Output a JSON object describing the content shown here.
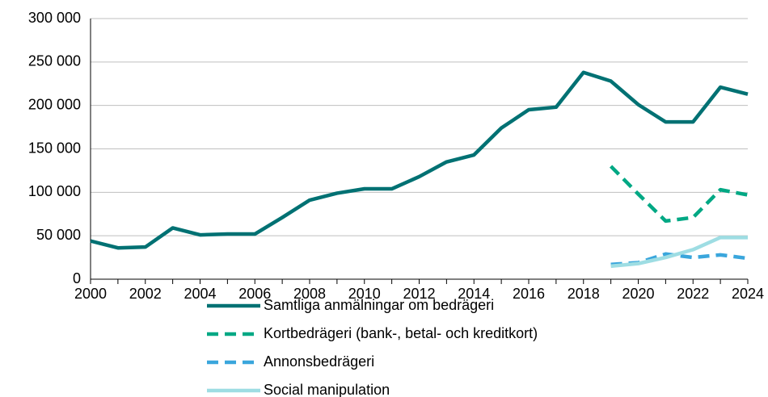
{
  "chart_data": {
    "type": "line",
    "x": [
      2000,
      2001,
      2002,
      2003,
      2004,
      2005,
      2006,
      2007,
      2008,
      2009,
      2010,
      2011,
      2012,
      2013,
      2014,
      2015,
      2016,
      2017,
      2018,
      2019,
      2020,
      2021,
      2022,
      2023,
      2024
    ],
    "series": [
      {
        "name": "Samtliga anmälningar om bedrägeri",
        "color": "#007173",
        "dash": false,
        "values": [
          44000,
          36000,
          37000,
          59000,
          51000,
          52000,
          52000,
          71000,
          91000,
          99000,
          104000,
          104000,
          118000,
          135000,
          143000,
          174000,
          195000,
          198000,
          238000,
          228000,
          201000,
          181000,
          181000,
          221000,
          213000
        ]
      },
      {
        "name": "Kortbedrägeri (bank-, betal- och kreditkort)",
        "color": "#00a884",
        "dash": true,
        "values": [
          null,
          null,
          null,
          null,
          null,
          null,
          null,
          null,
          null,
          null,
          null,
          null,
          null,
          null,
          null,
          null,
          null,
          null,
          null,
          130000,
          98000,
          67000,
          71000,
          103000,
          97000
        ]
      },
      {
        "name": "Annonsbedrägeri",
        "color": "#3aa6dc",
        "dash": true,
        "values": [
          null,
          null,
          null,
          null,
          null,
          null,
          null,
          null,
          null,
          null,
          null,
          null,
          null,
          null,
          null,
          null,
          null,
          null,
          null,
          17000,
          19000,
          29000,
          25000,
          28000,
          24000
        ]
      },
      {
        "name": "Social manipulation",
        "color": "#9edde3",
        "dash": false,
        "values": [
          null,
          null,
          null,
          null,
          null,
          null,
          null,
          null,
          null,
          null,
          null,
          null,
          null,
          null,
          null,
          null,
          null,
          null,
          null,
          15000,
          18000,
          25000,
          34000,
          48000,
          48000
        ]
      }
    ],
    "xlim": [
      2000,
      2024
    ],
    "xticks": [
      2000,
      2002,
      2004,
      2006,
      2008,
      2010,
      2012,
      2014,
      2016,
      2018,
      2020,
      2022,
      2024
    ],
    "ylim": [
      0,
      300000
    ],
    "yticks": [
      0,
      {
        "value": 50000,
        "label": "50 000"
      },
      {
        "value": 100000,
        "label": "100 000"
      },
      {
        "value": 150000,
        "label": "150 000"
      },
      {
        "value": 200000,
        "label": "200 000"
      },
      {
        "value": 250000,
        "label": "250 000"
      },
      {
        "value": 300000,
        "label": "300 000"
      }
    ],
    "grid": true
  }
}
